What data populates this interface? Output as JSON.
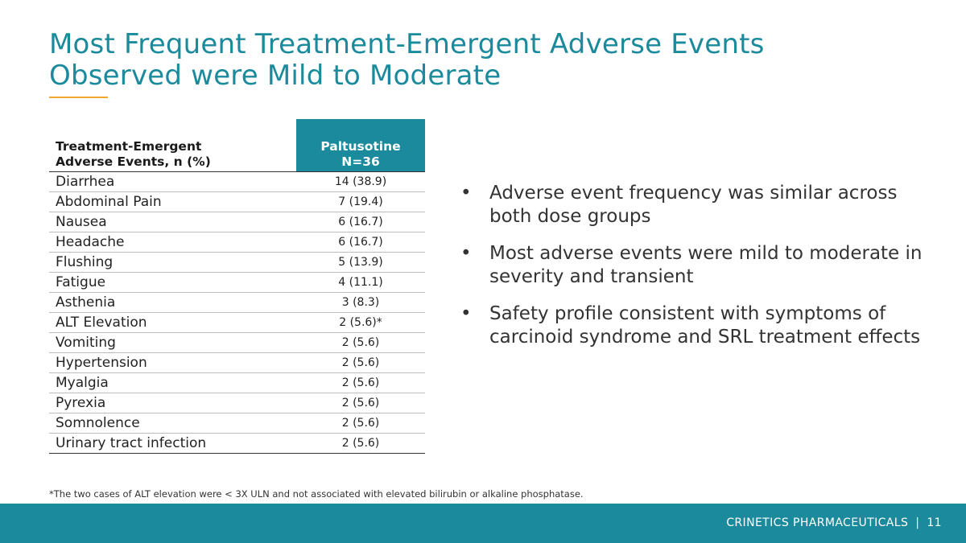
{
  "slide": {
    "title_line1": "Most Frequent Treatment-Emergent Adverse Events",
    "title_line2": "Observed were Mild to Moderate"
  },
  "table": {
    "header_event_line1": "Treatment-Emergent",
    "header_event_line2": "Adverse Events, n (%)",
    "header_drug_line1": "Paltusotine",
    "header_drug_line2": "N=36",
    "rows": [
      {
        "event": "Diarrhea",
        "value": "14 (38.9)"
      },
      {
        "event": "Abdominal Pain",
        "value": "7 (19.4)"
      },
      {
        "event": "Nausea",
        "value": "6 (16.7)"
      },
      {
        "event": "Headache",
        "value": "6 (16.7)"
      },
      {
        "event": "Flushing",
        "value": "5 (13.9)"
      },
      {
        "event": "Fatigue",
        "value": "4 (11.1)"
      },
      {
        "event": "Asthenia",
        "value": "3 (8.3)"
      },
      {
        "event": "ALT Elevation",
        "value": "2 (5.6)*"
      },
      {
        "event": "Vomiting",
        "value": "2 (5.6)"
      },
      {
        "event": "Hypertension",
        "value": "2 (5.6)"
      },
      {
        "event": "Myalgia",
        "value": "2 (5.6)"
      },
      {
        "event": "Pyrexia",
        "value": "2 (5.6)"
      },
      {
        "event": "Somnolence",
        "value": "2 (5.6)"
      },
      {
        "event": "Urinary tract infection",
        "value": "2 (5.6)"
      }
    ]
  },
  "bullets": {
    "symbol": "•",
    "items": [
      "Adverse event frequency was similar across both dose groups",
      "Most adverse events were mild to moderate in severity and transient",
      "Safety profile consistent with symptoms of carcinoid syndrome and SRL treatment effects"
    ]
  },
  "footnote": "*The two cases of ALT elevation were < 3X ULN and not associated with elevated bilirubin or alkaline phosphatase.",
  "footer": {
    "company": "CRINETICS PHARMACEUTICALS",
    "separator": "|",
    "page_number": "11"
  },
  "colors": {
    "accent_teal": "#1b8a9c",
    "title_rule_orange": "#f0a830"
  }
}
